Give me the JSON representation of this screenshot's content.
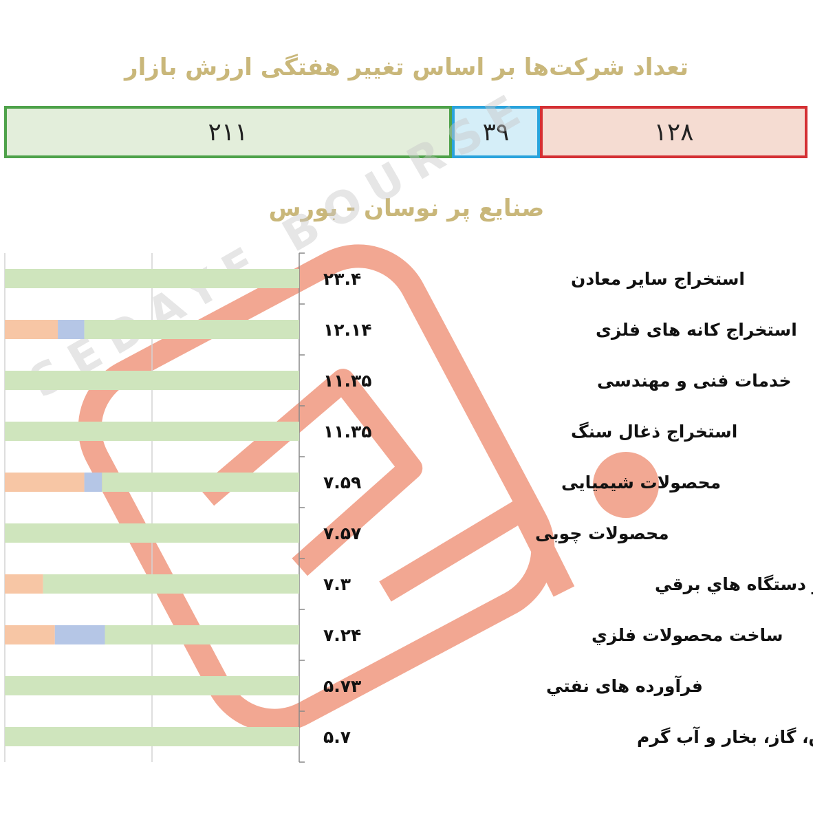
{
  "title_main": "تعداد شرکت‌ها بر اساس تغییر هفتگی ارزش بازار",
  "summary": {
    "positive": "۲۱۱",
    "neutral": "۳۹",
    "negative": "۱۲۸",
    "positive_color": "#4ea24a",
    "neutral_color": "#2aa3dc",
    "negative_color": "#d43034"
  },
  "title_sub": "صنایع پر نوسان - بورس",
  "watermark_text": "SEDAYE BOURSE",
  "chart_data": {
    "type": "bar",
    "orientation": "horizontal-stacked-100",
    "title": "صنایع پر نوسان - بورس",
    "categories": [
      "استخراج ساير معادن",
      "استخراج کانه های فلزی",
      "خدمات فنی و مهندسی",
      "استخراج ذغال سنگ",
      "محصولات شیمیایی",
      "محصولات چوبی",
      "ماشین آلات و دستگاه هاي برقي",
      "ساخت محصولات فلزي",
      "فرآورده های نفتي",
      "عرضه برق، گاز، بخار و آب گرم"
    ],
    "values": [
      "۲۳.۴",
      "۱۲.۱۴",
      "۱۱.۳۵",
      "۱۱.۳۵",
      "۷.۵۹",
      "۷.۵۷",
      "۷.۳",
      "۷.۲۴",
      "۵.۷۳",
      "۵.۷"
    ],
    "series": [
      {
        "color": "#f7c6a5",
        "values": [
          0,
          18,
          0,
          0,
          27,
          0,
          13,
          17,
          0,
          0
        ]
      },
      {
        "color": "#b5c6e6",
        "values": [
          0,
          9,
          0,
          0,
          6,
          0,
          0,
          17,
          0,
          0
        ]
      },
      {
        "color": "#cfe5bd",
        "values": [
          100,
          73,
          100,
          100,
          67,
          100,
          87,
          66,
          100,
          100
        ]
      }
    ],
    "xlim": [
      0,
      100
    ],
    "grid": true
  }
}
